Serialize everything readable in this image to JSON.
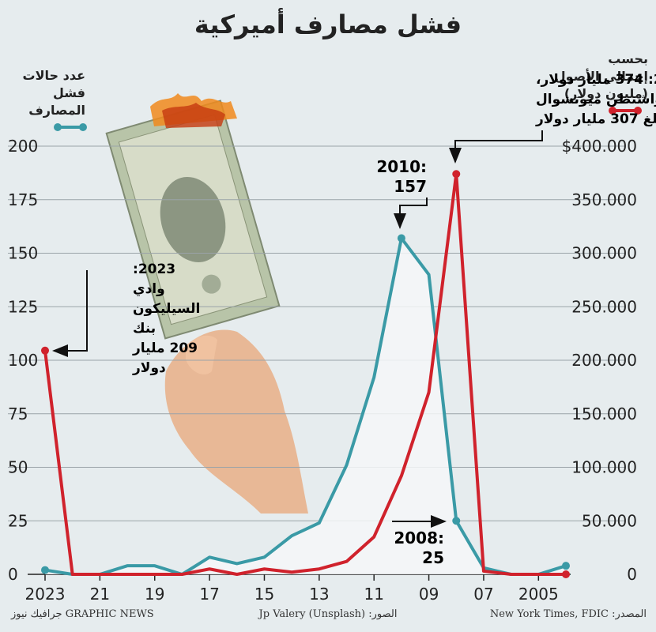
{
  "header": {
    "title": "فشل مصارف أميركية"
  },
  "legend": {
    "left": {
      "line1": "عدد حالات",
      "line2": "فشل المصارف",
      "color": "#3a9aa6"
    },
    "right": {
      "line1": "بحسب",
      "line2": "إجمالي الأصول",
      "line3": "(مليون دولار)",
      "color": "#d0222c"
    }
  },
  "annotations": {
    "wamu": {
      "line1": "2008: 374 مليار دولار،",
      "line2": "بما في ذلك واشنطن ميوتشوال",
      "line3": "بنك بمبلغ 307 مليار دولار"
    },
    "peak2010": {
      "line1": "2010:",
      "line2": "157"
    },
    "svb": {
      "line1": "2023:",
      "line2": "وادي",
      "line3": "السيليكون",
      "line4": "بنك",
      "line5": "209 مليار",
      "line6": "دولار"
    },
    "low2008": {
      "line1": "2008:",
      "line2": "25"
    }
  },
  "footer": {
    "credit": "GRAPHIC NEWS جرافيك نيوز",
    "photo": "الصور: Jp Valery (Unsplash)",
    "source": "المصدر: New York Times, FDIC"
  },
  "colors": {
    "failures": "#3a9aa6",
    "assets": "#d0222c",
    "fill": "#f4f7f8",
    "grid": "#9aa3a8"
  },
  "chart_data": {
    "type": "line",
    "x": [
      2023,
      2022,
      2021,
      2020,
      2019,
      2018,
      2017,
      2016,
      2015,
      2014,
      2013,
      2012,
      2011,
      2010,
      2009,
      2008,
      2007,
      2006,
      2005,
      2004
    ],
    "x_ticks": [
      2023,
      2021,
      2019,
      2017,
      2015,
      2013,
      2011,
      2009,
      2007,
      2005
    ],
    "x_tick_labels": [
      "2023",
      "21",
      "19",
      "17",
      "15",
      "13",
      "11",
      "09",
      "07",
      "2005"
    ],
    "xlim": [
      2023,
      2004
    ],
    "left_ticks": [
      "0",
      "25",
      "50",
      "75",
      "100",
      "125",
      "150",
      "175",
      "200"
    ],
    "right_ticks": [
      "0",
      "50.000",
      "100.000",
      "150.000",
      "200.000",
      "250.000",
      "300.000",
      "350.000",
      "$400.000"
    ],
    "y_left_lim": [
      0,
      200
    ],
    "y_right_lim": [
      0,
      400000
    ],
    "series": [
      {
        "name": "عدد حالات فشل المصارف",
        "axis": "left",
        "values": [
          2,
          0,
          0,
          4,
          4,
          0,
          8,
          5,
          8,
          18,
          24,
          51,
          92,
          157,
          140,
          25,
          3,
          0,
          0,
          4
        ]
      },
      {
        "name": "إجمالي الأصول (مليون دولار)",
        "axis": "right",
        "values": [
          209000,
          0,
          0,
          0,
          0,
          0,
          5000,
          0,
          5000,
          2000,
          5000,
          12000,
          35000,
          92000,
          170000,
          374000,
          3000,
          0,
          0,
          0
        ]
      }
    ]
  }
}
